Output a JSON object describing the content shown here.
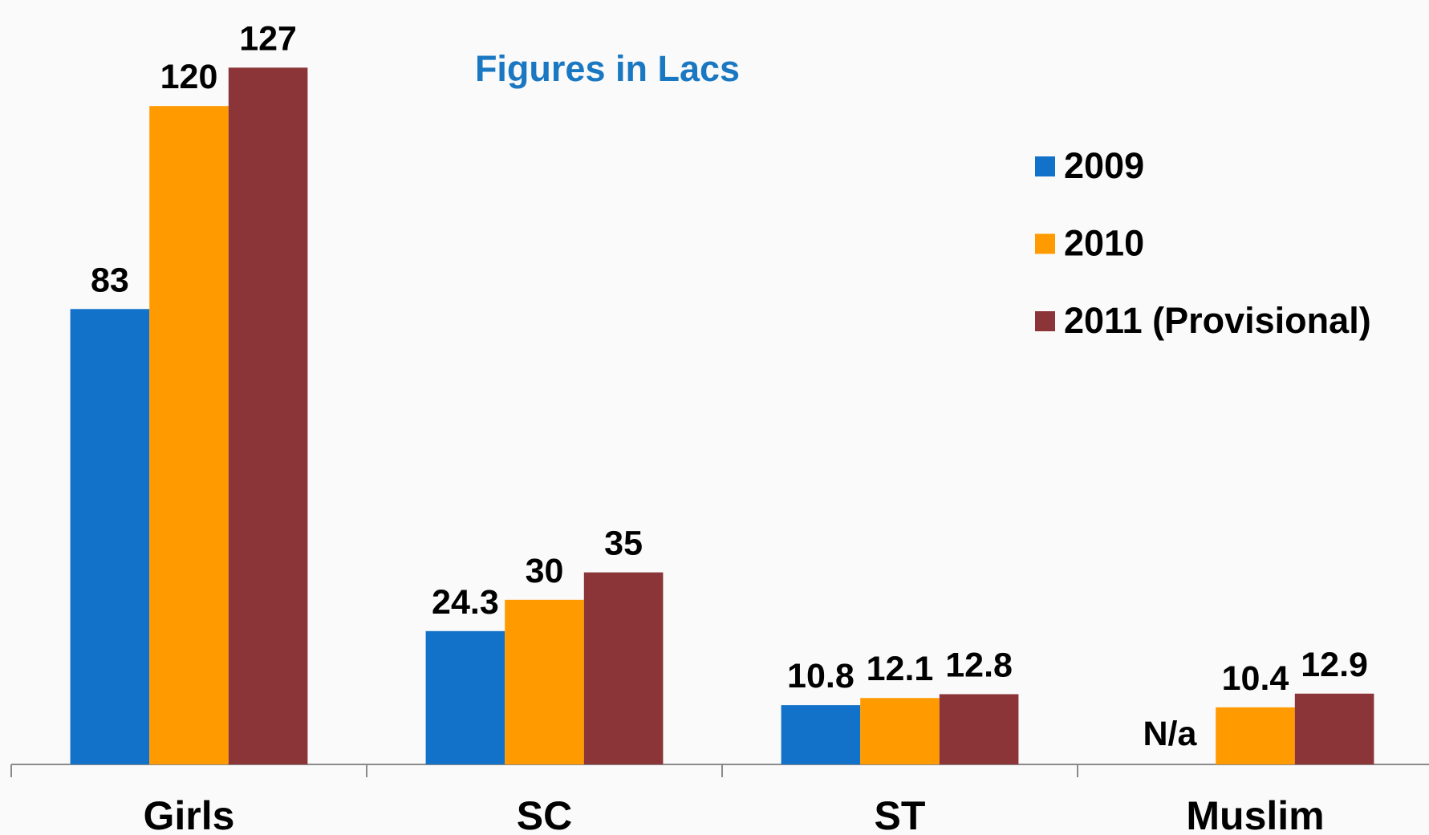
{
  "chart_data": {
    "type": "bar",
    "subtitle": "Figures in Lacs",
    "categories": [
      "Girls",
      "SC",
      "ST",
      "Muslim"
    ],
    "series": [
      {
        "name": "2009",
        "color": "#1271c8",
        "values": [
          83,
          24.3,
          10.8,
          null
        ],
        "value_labels": [
          "83",
          "24.3",
          "10.8",
          "N/a"
        ]
      },
      {
        "name": "2010",
        "color": "#ff9a00",
        "values": [
          120,
          30,
          12.1,
          10.4
        ]
      },
      {
        "name": "2011 (Provisional)",
        "color": "#8b3539",
        "values": [
          127,
          35,
          12.8,
          12.9
        ]
      }
    ],
    "ylim": [
      0,
      140
    ],
    "legend": "upper right"
  }
}
